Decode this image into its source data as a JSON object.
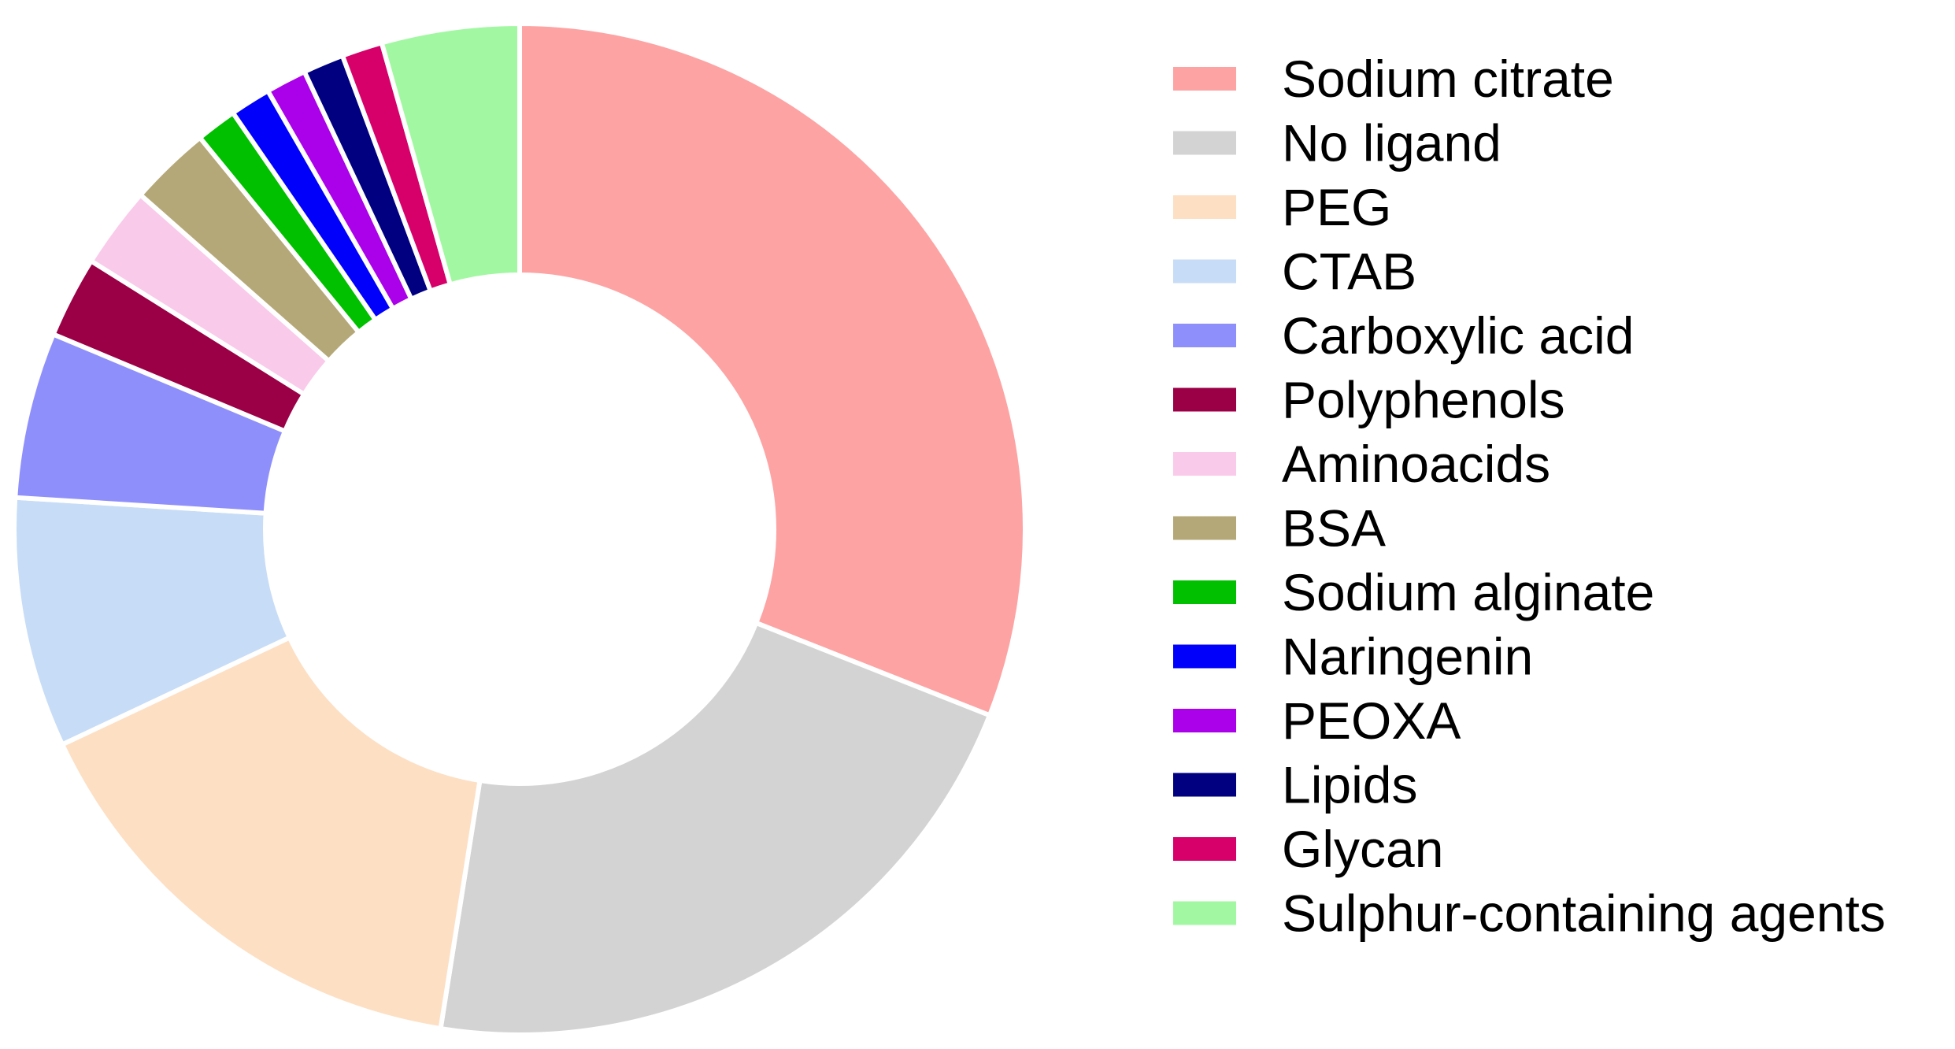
{
  "chart_data": {
    "type": "pie",
    "variant": "donut",
    "legend_position": "right",
    "series": [
      {
        "name": "Sodium citrate",
        "value": 31.0,
        "color": "#fda3a3"
      },
      {
        "name": "No ligand",
        "value": 21.5,
        "color": "#d3d3d3"
      },
      {
        "name": "PEG",
        "value": 15.5,
        "color": "#fddfc3"
      },
      {
        "name": "CTAB",
        "value": 8.0,
        "color": "#c7dcf6"
      },
      {
        "name": "Carboxylic acid",
        "value": 5.3,
        "color": "#8f8ffc"
      },
      {
        "name": "Polyphenols",
        "value": 2.6,
        "color": "#9b0046"
      },
      {
        "name": "Aminoacids",
        "value": 2.6,
        "color": "#f9caea"
      },
      {
        "name": "BSA",
        "value": 2.6,
        "color": "#b5a878"
      },
      {
        "name": "Sodium alginate",
        "value": 1.3,
        "color": "#00c000"
      },
      {
        "name": "Naringenin",
        "value": 1.3,
        "color": "#0000fb"
      },
      {
        "name": "PEOXA",
        "value": 1.3,
        "color": "#ab00ea"
      },
      {
        "name": "Lipids",
        "value": 1.3,
        "color": "#000080"
      },
      {
        "name": "Glycan",
        "value": 1.3,
        "color": "#d7006a"
      },
      {
        "name": "Sulphur-containing agents",
        "value": 4.4,
        "color": "#a2f8a2"
      }
    ]
  }
}
